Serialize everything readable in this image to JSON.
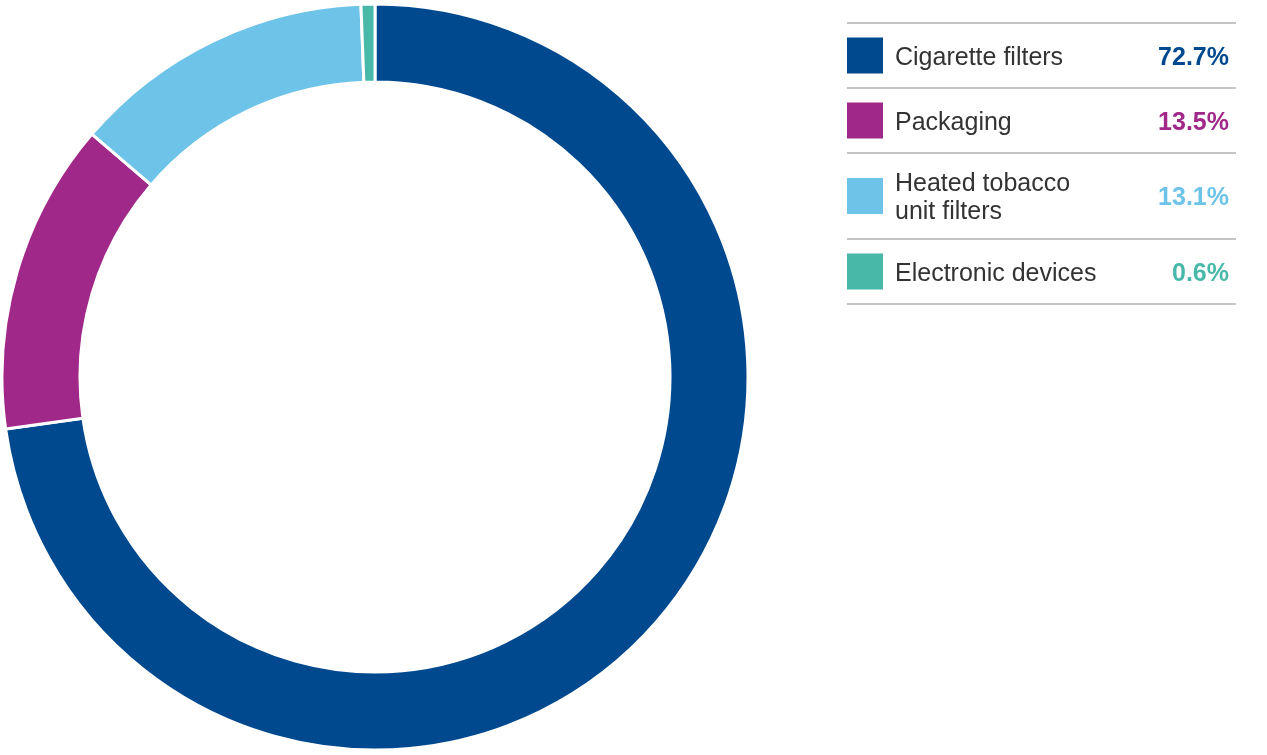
{
  "chart_data": {
    "type": "donut",
    "categories": [
      "Cigarette filters",
      "Packaging",
      "Heated tobacco unit filters",
      "Electronic devices"
    ],
    "values": [
      72.7,
      13.5,
      13.1,
      0.6
    ],
    "colors": [
      "#00498f",
      "#a02889",
      "#6ec3e9",
      "#48b8a8"
    ],
    "value_labels": [
      "72.7%",
      "13.5%",
      "13.1%",
      "0.6%"
    ],
    "legend": "top right"
  }
}
